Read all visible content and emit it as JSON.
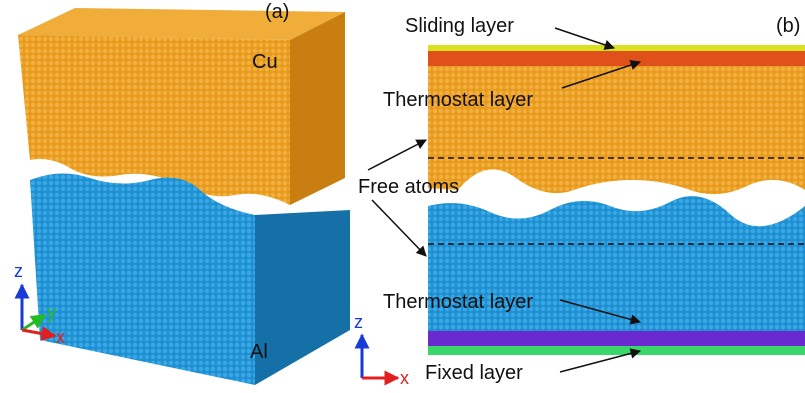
{
  "panel_a": {
    "label": "(a)",
    "upper_block": "Cu",
    "lower_block": "Al",
    "axes": [
      "z",
      "y",
      "x"
    ]
  },
  "panel_b": {
    "label": "(b)",
    "annotations": [
      "Sliding layer",
      "Thermostat layer",
      "Free atoms",
      "Thermostat layer",
      "Fixed layer"
    ],
    "axes": [
      "z",
      "x"
    ]
  }
}
